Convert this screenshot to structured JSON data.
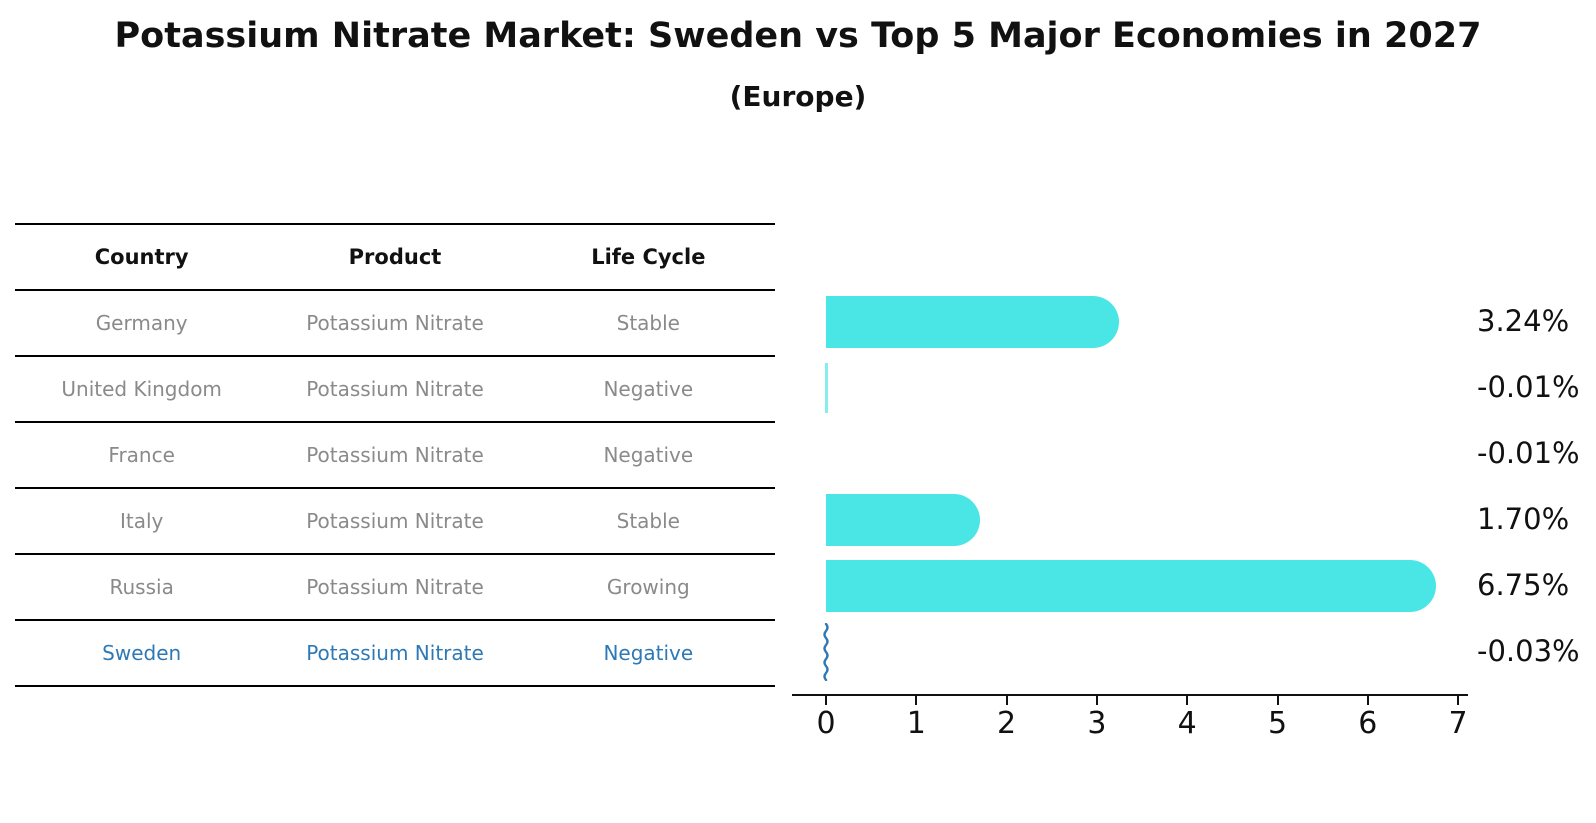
{
  "title": "Potassium Nitrate Market: Sweden vs Top 5 Major Economies in 2027",
  "subtitle": "(Europe)",
  "table": {
    "headers": {
      "country": "Country",
      "product": "Product",
      "life_cycle": "Life Cycle"
    },
    "rows": [
      {
        "country": "Germany",
        "product": "Potassium Nitrate",
        "life_cycle": "Stable",
        "highlight": false
      },
      {
        "country": "United Kingdom",
        "product": "Potassium Nitrate",
        "life_cycle": "Negative",
        "highlight": false
      },
      {
        "country": "France",
        "product": "Potassium Nitrate",
        "life_cycle": "Negative",
        "highlight": false
      },
      {
        "country": "Italy",
        "product": "Potassium Nitrate",
        "life_cycle": "Stable",
        "highlight": false
      },
      {
        "country": "Russia",
        "product": "Potassium Nitrate",
        "life_cycle": "Growing",
        "highlight": false
      },
      {
        "country": "Sweden",
        "product": "Potassium Nitrate",
        "life_cycle": "Negative",
        "highlight": true
      }
    ]
  },
  "chart_data": {
    "type": "bar",
    "orientation": "horizontal",
    "title": "Potassium Nitrate Market: Sweden vs Top 5 Major Economies in 2027 (Europe)",
    "categories": [
      "Germany",
      "United Kingdom",
      "France",
      "Italy",
      "Russia",
      "Sweden"
    ],
    "values": [
      3.24,
      -0.01,
      -0.01,
      1.7,
      6.75,
      -0.03
    ],
    "value_labels": [
      "3.24%",
      "-0.01%",
      "-0.01%",
      "1.70%",
      "6.75%",
      "-0.03%"
    ],
    "x_ticks": [
      "0",
      "1",
      "2",
      "3",
      "4",
      "5",
      "6",
      "7"
    ],
    "xlim": [
      -0.4,
      7.15
    ],
    "xlabel": "",
    "ylabel": "",
    "grid": false,
    "legend": "none",
    "bar_color": "#4ae6e6",
    "sliver_color": "#86ecec",
    "highlight_country": "Sweden",
    "highlight_color": "#2e79b5",
    "bar_styles": [
      "rounded",
      "sliver",
      "none",
      "rounded",
      "rounded",
      "squiggle"
    ]
  },
  "colors": {
    "background": "#ffffff",
    "bar": "#4ae6e6",
    "highlight_blue": "#2e79b5",
    "table_text_gray": "#8a8a8a",
    "text_black": "#111111"
  }
}
